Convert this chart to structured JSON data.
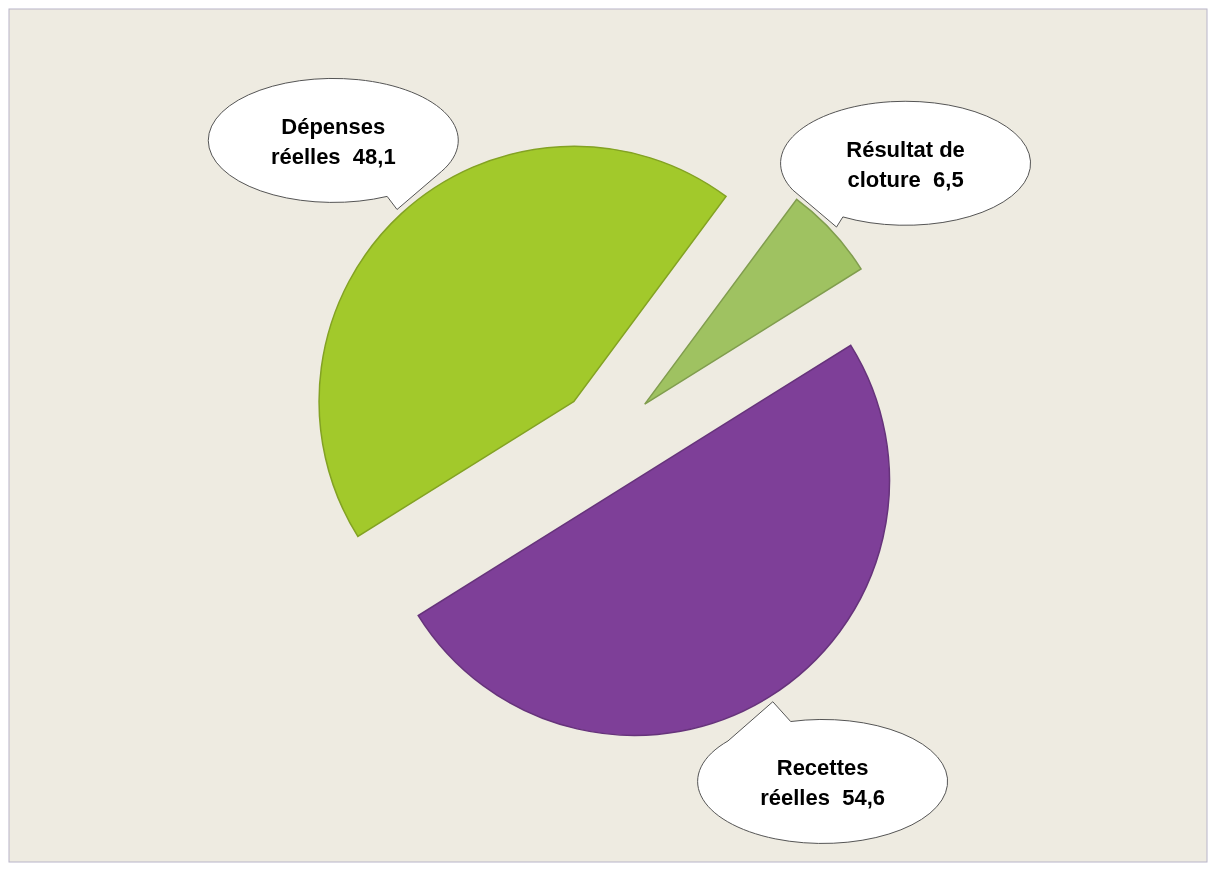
{
  "chart_data": {
    "type": "pie",
    "categories": [
      "Dépenses réelles",
      "Résultat de cloture",
      "Recettes réelles"
    ],
    "values": [
      48.1,
      6.5,
      54.6
    ],
    "value_labels": [
      "48,1",
      "6,5",
      "54,6"
    ],
    "colors": [
      "#a2c92b",
      "#9fc261",
      "#7e3f98"
    ]
  }
}
